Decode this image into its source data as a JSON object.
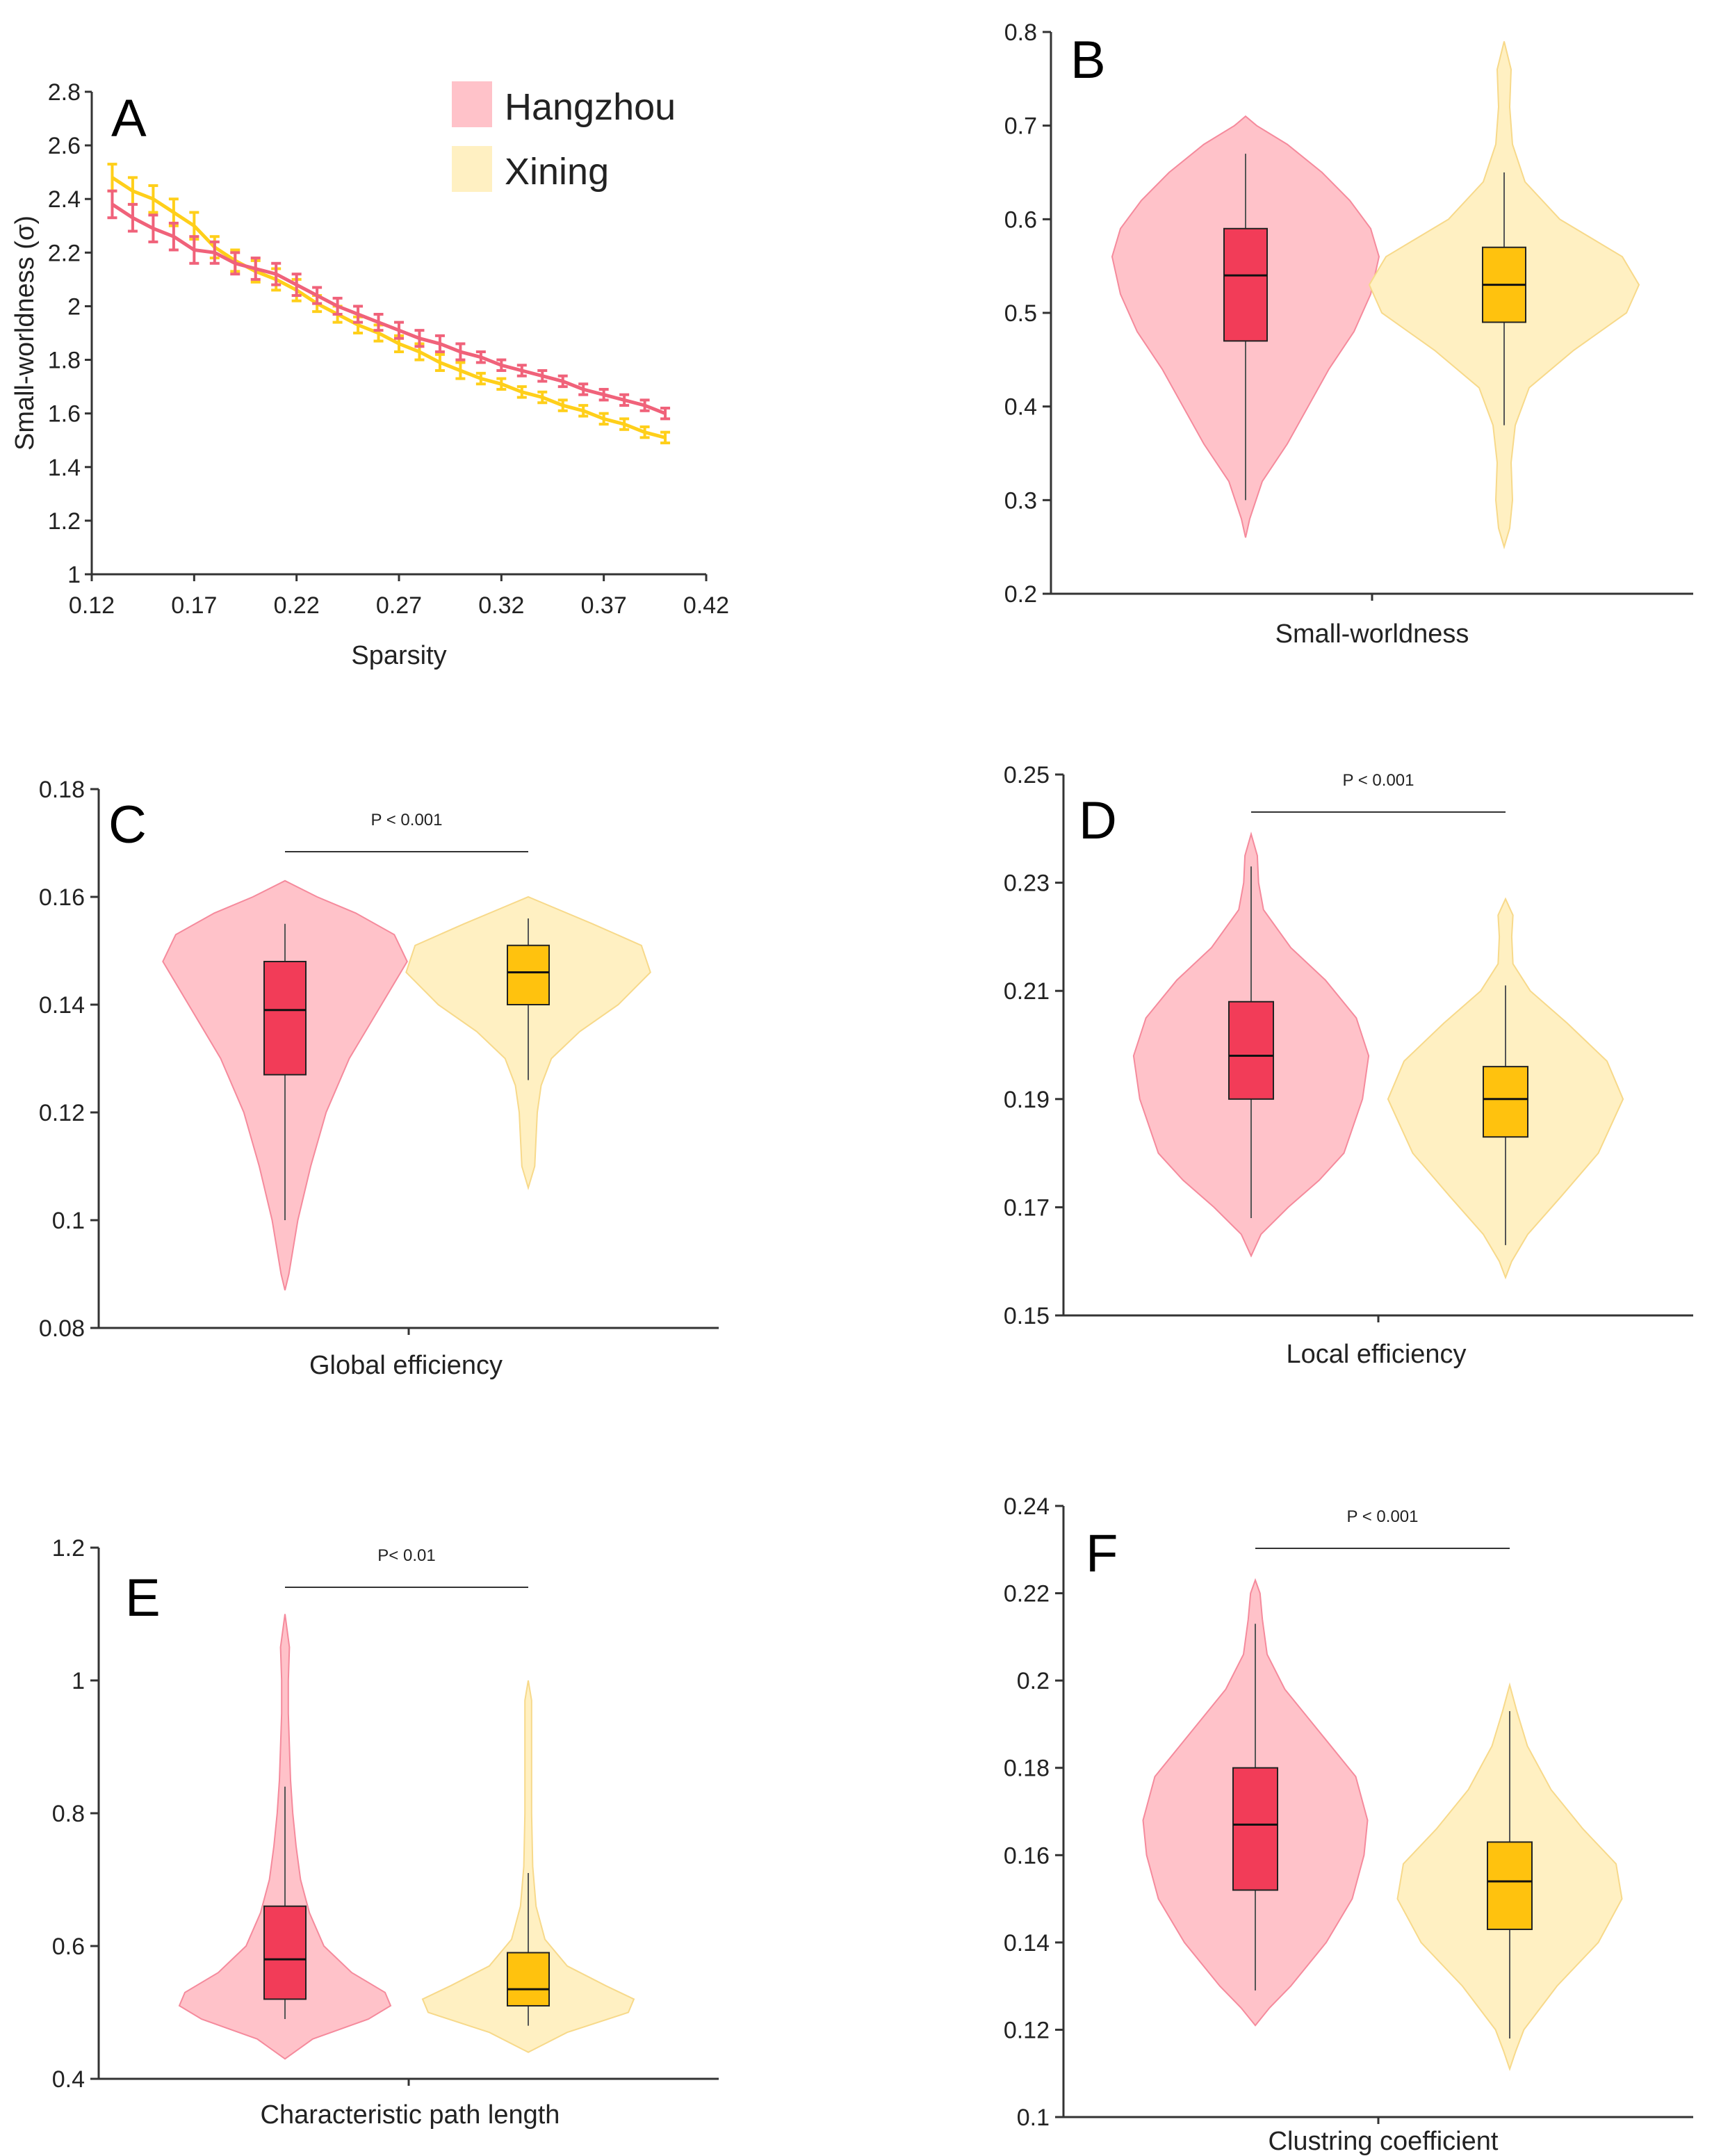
{
  "colors": {
    "hangzhou_line": "#f0627a",
    "xining_line": "#ffcf1a",
    "hangzhou_violin": "#ffc2c9",
    "hangzhou_violin_edge": "#f58a9c",
    "xining_violin": "#fff0c2",
    "xining_violin_edge": "#f7d98a",
    "hangzhou_box": "#f23c58",
    "xining_box": "#ffc20e",
    "axis": "#333333"
  },
  "legend": {
    "hangzhou": "Hangzhou",
    "xining": "Xining"
  },
  "chart_data": [
    {
      "panel": "A",
      "type": "line",
      "xlabel": "Sparsity",
      "ylabel": "Small-worldness (σ)",
      "xlim": [
        0.12,
        0.42
      ],
      "ylim": [
        1,
        2.8
      ],
      "xticks": [
        0.12,
        0.17,
        0.22,
        0.27,
        0.32,
        0.37,
        0.42
      ],
      "yticks": [
        1,
        1.2,
        1.4,
        1.6,
        1.8,
        2,
        2.2,
        2.4,
        2.6,
        2.8
      ],
      "x": [
        0.13,
        0.14,
        0.15,
        0.16,
        0.17,
        0.18,
        0.19,
        0.2,
        0.21,
        0.22,
        0.23,
        0.24,
        0.25,
        0.26,
        0.27,
        0.28,
        0.29,
        0.3,
        0.31,
        0.32,
        0.33,
        0.34,
        0.35,
        0.36,
        0.37,
        0.38,
        0.39,
        0.4
      ],
      "series": [
        {
          "name": "Hangzhou",
          "values": [
            2.38,
            2.33,
            2.29,
            2.26,
            2.21,
            2.2,
            2.16,
            2.14,
            2.12,
            2.08,
            2.04,
            2.0,
            1.97,
            1.94,
            1.91,
            1.88,
            1.86,
            1.83,
            1.81,
            1.78,
            1.76,
            1.74,
            1.72,
            1.69,
            1.67,
            1.65,
            1.63,
            1.6
          ],
          "error": [
            0.05,
            0.05,
            0.05,
            0.05,
            0.05,
            0.04,
            0.04,
            0.04,
            0.04,
            0.04,
            0.03,
            0.03,
            0.03,
            0.03,
            0.03,
            0.03,
            0.03,
            0.03,
            0.02,
            0.02,
            0.02,
            0.02,
            0.02,
            0.02,
            0.02,
            0.02,
            0.02,
            0.02
          ]
        },
        {
          "name": "Xining",
          "values": [
            2.48,
            2.43,
            2.4,
            2.35,
            2.3,
            2.22,
            2.17,
            2.13,
            2.1,
            2.06,
            2.01,
            1.97,
            1.93,
            1.9,
            1.86,
            1.83,
            1.79,
            1.76,
            1.73,
            1.71,
            1.68,
            1.66,
            1.63,
            1.61,
            1.58,
            1.56,
            1.53,
            1.51
          ],
          "error": [
            0.05,
            0.05,
            0.05,
            0.05,
            0.05,
            0.04,
            0.04,
            0.04,
            0.04,
            0.04,
            0.03,
            0.03,
            0.03,
            0.03,
            0.03,
            0.03,
            0.03,
            0.03,
            0.02,
            0.02,
            0.02,
            0.02,
            0.02,
            0.02,
            0.02,
            0.02,
            0.02,
            0.02
          ]
        }
      ]
    },
    {
      "panel": "B",
      "type": "violin",
      "xlabel": "Small-worldness",
      "ylim": [
        0.2,
        0.8
      ],
      "yticks": [
        0.2,
        0.3,
        0.4,
        0.5,
        0.6,
        0.7,
        0.8
      ],
      "pvalue": "",
      "groups": [
        {
          "name": "Hangzhou",
          "min": 0.26,
          "max": 0.71,
          "whisker_low": 0.3,
          "whisker_high": 0.67,
          "q1": 0.47,
          "median": 0.54,
          "q3": 0.59,
          "profile": [
            [
              0.26,
              0.0
            ],
            [
              0.28,
              0.03
            ],
            [
              0.32,
              0.12
            ],
            [
              0.36,
              0.3
            ],
            [
              0.4,
              0.45
            ],
            [
              0.44,
              0.6
            ],
            [
              0.48,
              0.78
            ],
            [
              0.52,
              0.9
            ],
            [
              0.56,
              0.96
            ],
            [
              0.59,
              0.9
            ],
            [
              0.62,
              0.75
            ],
            [
              0.65,
              0.55
            ],
            [
              0.68,
              0.3
            ],
            [
              0.7,
              0.08
            ],
            [
              0.71,
              0.0
            ]
          ]
        },
        {
          "name": "Xining",
          "min": 0.25,
          "max": 0.79,
          "whisker_low": 0.38,
          "whisker_high": 0.65,
          "q1": 0.49,
          "median": 0.53,
          "q3": 0.57,
          "profile": [
            [
              0.25,
              0.0
            ],
            [
              0.27,
              0.04
            ],
            [
              0.3,
              0.06
            ],
            [
              0.34,
              0.05
            ],
            [
              0.38,
              0.08
            ],
            [
              0.42,
              0.18
            ],
            [
              0.46,
              0.5
            ],
            [
              0.5,
              0.88
            ],
            [
              0.53,
              0.97
            ],
            [
              0.56,
              0.85
            ],
            [
              0.6,
              0.4
            ],
            [
              0.64,
              0.15
            ],
            [
              0.68,
              0.06
            ],
            [
              0.72,
              0.04
            ],
            [
              0.76,
              0.05
            ],
            [
              0.79,
              0.0
            ]
          ]
        }
      ]
    },
    {
      "panel": "C",
      "type": "violin",
      "xlabel": "Global efficiency",
      "ylim": [
        0.08,
        0.18
      ],
      "yticks": [
        0.08,
        0.1,
        0.12,
        0.14,
        0.16,
        0.18
      ],
      "pvalue": "P < 0.001",
      "groups": [
        {
          "name": "Hangzhou",
          "min": 0.087,
          "max": 0.163,
          "whisker_low": 0.1,
          "whisker_high": 0.155,
          "q1": 0.127,
          "median": 0.139,
          "q3": 0.148,
          "profile": [
            [
              0.087,
              0.0
            ],
            [
              0.09,
              0.03
            ],
            [
              0.1,
              0.1
            ],
            [
              0.11,
              0.2
            ],
            [
              0.12,
              0.32
            ],
            [
              0.13,
              0.5
            ],
            [
              0.14,
              0.75
            ],
            [
              0.148,
              0.95
            ],
            [
              0.153,
              0.85
            ],
            [
              0.157,
              0.55
            ],
            [
              0.16,
              0.25
            ],
            [
              0.163,
              0.0
            ]
          ]
        },
        {
          "name": "Xining",
          "min": 0.106,
          "max": 0.16,
          "whisker_low": 0.126,
          "whisker_high": 0.156,
          "q1": 0.14,
          "median": 0.146,
          "q3": 0.151,
          "profile": [
            [
              0.106,
              0.0
            ],
            [
              0.11,
              0.05
            ],
            [
              0.115,
              0.06
            ],
            [
              0.12,
              0.07
            ],
            [
              0.125,
              0.1
            ],
            [
              0.13,
              0.18
            ],
            [
              0.135,
              0.4
            ],
            [
              0.14,
              0.7
            ],
            [
              0.146,
              0.95
            ],
            [
              0.151,
              0.88
            ],
            [
              0.155,
              0.5
            ],
            [
              0.158,
              0.2
            ],
            [
              0.16,
              0.0
            ]
          ]
        }
      ]
    },
    {
      "panel": "D",
      "type": "violin",
      "xlabel": "Local efficiency",
      "ylim": [
        0.15,
        0.25
      ],
      "yticks": [
        0.15,
        0.17,
        0.19,
        0.21,
        0.23,
        0.25
      ],
      "pvalue": "P < 0.001",
      "groups": [
        {
          "name": "Hangzhou",
          "min": 0.161,
          "max": 0.239,
          "whisker_low": 0.168,
          "whisker_high": 0.233,
          "q1": 0.19,
          "median": 0.198,
          "q3": 0.208,
          "profile": [
            [
              0.161,
              0.0
            ],
            [
              0.165,
              0.08
            ],
            [
              0.17,
              0.3
            ],
            [
              0.175,
              0.55
            ],
            [
              0.18,
              0.75
            ],
            [
              0.19,
              0.9
            ],
            [
              0.198,
              0.95
            ],
            [
              0.205,
              0.85
            ],
            [
              0.212,
              0.6
            ],
            [
              0.218,
              0.32
            ],
            [
              0.225,
              0.1
            ],
            [
              0.23,
              0.06
            ],
            [
              0.235,
              0.05
            ],
            [
              0.239,
              0.0
            ]
          ]
        },
        {
          "name": "Xining",
          "min": 0.157,
          "max": 0.227,
          "whisker_low": 0.163,
          "whisker_high": 0.211,
          "q1": 0.183,
          "median": 0.19,
          "q3": 0.196,
          "profile": [
            [
              0.157,
              0.0
            ],
            [
              0.16,
              0.05
            ],
            [
              0.165,
              0.18
            ],
            [
              0.172,
              0.45
            ],
            [
              0.18,
              0.75
            ],
            [
              0.19,
              0.95
            ],
            [
              0.197,
              0.82
            ],
            [
              0.204,
              0.5
            ],
            [
              0.21,
              0.2
            ],
            [
              0.215,
              0.06
            ],
            [
              0.22,
              0.05
            ],
            [
              0.224,
              0.06
            ],
            [
              0.227,
              0.0
            ]
          ]
        }
      ]
    },
    {
      "panel": "E",
      "type": "violin",
      "xlabel": "Characteristic path length",
      "ylim": [
        0.4,
        1.2
      ],
      "yticks": [
        0.4,
        0.6,
        0.8,
        1,
        1.2
      ],
      "pvalue": "P< 0.01",
      "groups": [
        {
          "name": "Hangzhou",
          "min": 0.43,
          "max": 1.1,
          "whisker_low": 0.49,
          "whisker_high": 0.84,
          "q1": 0.52,
          "median": 0.58,
          "q3": 0.66,
          "profile": [
            [
              0.43,
              0.0
            ],
            [
              0.46,
              0.25
            ],
            [
              0.49,
              0.75
            ],
            [
              0.51,
              0.95
            ],
            [
              0.53,
              0.9
            ],
            [
              0.56,
              0.6
            ],
            [
              0.6,
              0.35
            ],
            [
              0.65,
              0.22
            ],
            [
              0.7,
              0.14
            ],
            [
              0.75,
              0.1
            ],
            [
              0.8,
              0.07
            ],
            [
              0.85,
              0.05
            ],
            [
              0.9,
              0.04
            ],
            [
              0.95,
              0.03
            ],
            [
              1.0,
              0.03
            ],
            [
              1.05,
              0.04
            ],
            [
              1.1,
              0.0
            ]
          ]
        },
        {
          "name": "Xining",
          "min": 0.44,
          "max": 1.0,
          "whisker_low": 0.48,
          "whisker_high": 0.71,
          "q1": 0.51,
          "median": 0.535,
          "q3": 0.59,
          "profile": [
            [
              0.44,
              0.0
            ],
            [
              0.47,
              0.35
            ],
            [
              0.5,
              0.9
            ],
            [
              0.52,
              0.95
            ],
            [
              0.54,
              0.7
            ],
            [
              0.57,
              0.35
            ],
            [
              0.61,
              0.15
            ],
            [
              0.66,
              0.07
            ],
            [
              0.72,
              0.04
            ],
            [
              0.8,
              0.03
            ],
            [
              0.9,
              0.03
            ],
            [
              0.97,
              0.03
            ],
            [
              1.0,
              0.0
            ]
          ]
        }
      ]
    },
    {
      "panel": "F",
      "type": "violin",
      "xlabel": "Clustring coefficient",
      "ylim": [
        0.1,
        0.24
      ],
      "yticks": [
        0.1,
        0.12,
        0.14,
        0.16,
        0.18,
        0.2,
        0.22,
        0.24
      ],
      "pvalue": "P < 0.001",
      "groups": [
        {
          "name": "Hangzhou",
          "min": 0.121,
          "max": 0.223,
          "whisker_low": 0.129,
          "whisker_high": 0.213,
          "q1": 0.152,
          "median": 0.167,
          "q3": 0.18,
          "profile": [
            [
              0.121,
              0.0
            ],
            [
              0.125,
              0.12
            ],
            [
              0.13,
              0.3
            ],
            [
              0.14,
              0.6
            ],
            [
              0.15,
              0.82
            ],
            [
              0.16,
              0.92
            ],
            [
              0.168,
              0.95
            ],
            [
              0.178,
              0.85
            ],
            [
              0.188,
              0.55
            ],
            [
              0.198,
              0.25
            ],
            [
              0.206,
              0.1
            ],
            [
              0.214,
              0.06
            ],
            [
              0.22,
              0.04
            ],
            [
              0.223,
              0.0
            ]
          ]
        },
        {
          "name": "Xining",
          "min": 0.111,
          "max": 0.199,
          "whisker_low": 0.118,
          "whisker_high": 0.193,
          "q1": 0.143,
          "median": 0.154,
          "q3": 0.163,
          "profile": [
            [
              0.111,
              0.0
            ],
            [
              0.115,
              0.05
            ],
            [
              0.12,
              0.12
            ],
            [
              0.13,
              0.4
            ],
            [
              0.14,
              0.75
            ],
            [
              0.15,
              0.95
            ],
            [
              0.158,
              0.9
            ],
            [
              0.166,
              0.62
            ],
            [
              0.175,
              0.35
            ],
            [
              0.185,
              0.15
            ],
            [
              0.193,
              0.06
            ],
            [
              0.199,
              0.0
            ]
          ]
        }
      ]
    }
  ]
}
